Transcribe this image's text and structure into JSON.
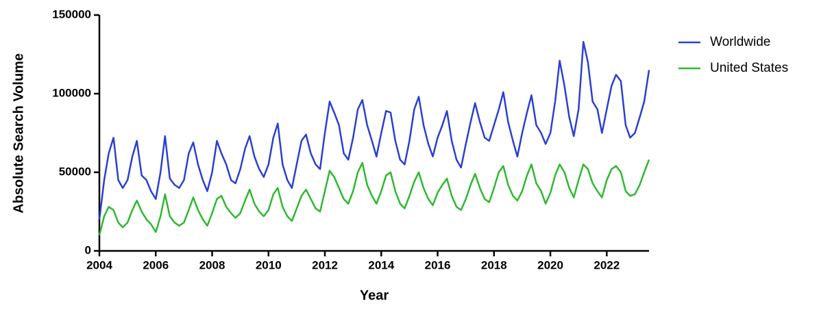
{
  "chart_data": {
    "type": "line",
    "xlabel": "Year",
    "ylabel": "Absolute Search Volume",
    "xlim": [
      2004,
      2023.5
    ],
    "xticks": [
      2004,
      2006,
      2008,
      2010,
      2012,
      2014,
      2016,
      2018,
      2020,
      2022
    ],
    "ylim": [
      0,
      150000
    ],
    "yticks": [
      0,
      50000,
      100000,
      150000
    ],
    "grid": false,
    "legend": "right",
    "x": [
      2004,
      2004.17,
      2004.33,
      2004.5,
      2004.67,
      2004.83,
      2005,
      2005.17,
      2005.33,
      2005.5,
      2005.67,
      2005.83,
      2006,
      2006.17,
      2006.33,
      2006.5,
      2006.67,
      2006.83,
      2007,
      2007.17,
      2007.33,
      2007.5,
      2007.67,
      2007.83,
      2008,
      2008.17,
      2008.33,
      2008.5,
      2008.67,
      2008.83,
      2009,
      2009.17,
      2009.33,
      2009.5,
      2009.67,
      2009.83,
      2010,
      2010.17,
      2010.33,
      2010.5,
      2010.67,
      2010.83,
      2011,
      2011.17,
      2011.33,
      2011.5,
      2011.67,
      2011.83,
      2012,
      2012.17,
      2012.33,
      2012.5,
      2012.67,
      2012.83,
      2013,
      2013.17,
      2013.33,
      2013.5,
      2013.67,
      2013.83,
      2014,
      2014.17,
      2014.33,
      2014.5,
      2014.67,
      2014.83,
      2015,
      2015.17,
      2015.33,
      2015.5,
      2015.67,
      2015.83,
      2016,
      2016.17,
      2016.33,
      2016.5,
      2016.67,
      2016.83,
      2017,
      2017.17,
      2017.33,
      2017.5,
      2017.67,
      2017.83,
      2018,
      2018.17,
      2018.33,
      2018.5,
      2018.67,
      2018.83,
      2019,
      2019.17,
      2019.33,
      2019.5,
      2019.67,
      2019.83,
      2020,
      2020.17,
      2020.33,
      2020.5,
      2020.67,
      2020.83,
      2021,
      2021.17,
      2021.33,
      2021.5,
      2021.67,
      2021.83,
      2022,
      2022.17,
      2022.33,
      2022.5,
      2022.67,
      2022.83,
      2023,
      2023.17,
      2023.33,
      2023.5
    ],
    "series": [
      {
        "name": "Worldwide",
        "color": "#2a3fd1",
        "values": [
          20000,
          45000,
          62000,
          72000,
          45000,
          40000,
          45000,
          60000,
          70000,
          48000,
          45000,
          38000,
          33000,
          50000,
          73000,
          46000,
          42000,
          40000,
          45000,
          62000,
          69000,
          55000,
          45000,
          38000,
          50000,
          70000,
          62000,
          55000,
          45000,
          43000,
          52000,
          65000,
          73000,
          60000,
          52000,
          47000,
          55000,
          72000,
          81000,
          55000,
          45000,
          40000,
          55000,
          70000,
          74000,
          62000,
          55000,
          52000,
          75000,
          95000,
          88000,
          80000,
          62000,
          58000,
          72000,
          90000,
          96000,
          80000,
          70000,
          60000,
          75000,
          89000,
          88000,
          70000,
          58000,
          55000,
          70000,
          90000,
          98000,
          80000,
          68000,
          60000,
          72000,
          80000,
          89000,
          70000,
          58000,
          53000,
          68000,
          82000,
          94000,
          82000,
          72000,
          70000,
          80000,
          90000,
          101000,
          82000,
          70000,
          60000,
          75000,
          88000,
          99000,
          80000,
          75000,
          68000,
          75000,
          95000,
          121000,
          105000,
          85000,
          73000,
          90000,
          133000,
          120000,
          95000,
          90000,
          75000,
          90000,
          105000,
          112000,
          108000,
          80000,
          72000,
          75000,
          85000,
          95000,
          115000
        ]
      },
      {
        "name": "United States",
        "color": "#2eb82e",
        "values": [
          10000,
          22000,
          28000,
          26000,
          18000,
          15000,
          18000,
          26000,
          32000,
          25000,
          20000,
          17000,
          12000,
          22000,
          36000,
          22000,
          18000,
          16000,
          18000,
          26000,
          34000,
          26000,
          20000,
          16000,
          24000,
          33000,
          35000,
          28000,
          24000,
          21000,
          24000,
          32000,
          39000,
          30000,
          25000,
          22000,
          26000,
          36000,
          40000,
          28000,
          22000,
          19000,
          27000,
          35000,
          39000,
          33000,
          27000,
          25000,
          38000,
          51000,
          47000,
          40000,
          33000,
          30000,
          38000,
          50000,
          56000,
          42000,
          35000,
          30000,
          38000,
          48000,
          50000,
          38000,
          30000,
          27000,
          35000,
          44000,
          50000,
          40000,
          33000,
          29000,
          37000,
          42000,
          46000,
          35000,
          28000,
          26000,
          33000,
          42000,
          49000,
          40000,
          33000,
          31000,
          40000,
          50000,
          54000,
          42000,
          35000,
          32000,
          38000,
          48000,
          55000,
          43000,
          38000,
          30000,
          37000,
          48000,
          55000,
          50000,
          40000,
          34000,
          45000,
          55000,
          52000,
          43000,
          38000,
          34000,
          45000,
          52000,
          54000,
          50000,
          38000,
          35000,
          36000,
          42000,
          50000,
          58000
        ]
      }
    ]
  }
}
